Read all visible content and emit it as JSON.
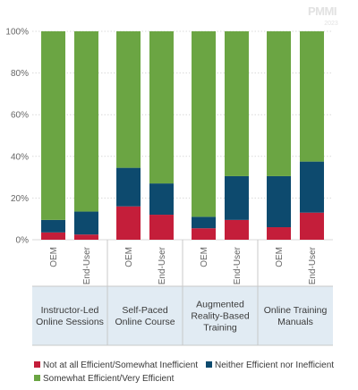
{
  "logo": {
    "text": "PMMI",
    "sub": "2023"
  },
  "chart_data": {
    "type": "bar",
    "stacked": true,
    "ylim": [
      0,
      100
    ],
    "yticks": [
      "0%",
      "20%",
      "40%",
      "60%",
      "80%",
      "100%"
    ],
    "groups": [
      {
        "label": [
          "Instructor-Led",
          "Online Sessions"
        ],
        "bars": [
          "OEM",
          "End-User"
        ]
      },
      {
        "label": [
          "Self-Paced",
          "Online Course"
        ],
        "bars": [
          "OEM",
          "End-User"
        ]
      },
      {
        "label": [
          "Augmented",
          "Reality-Based",
          "Training"
        ],
        "bars": [
          "OEM",
          "End-User"
        ]
      },
      {
        "label": [
          "Online Training",
          "Manuals"
        ],
        "bars": [
          "OEM",
          "End-User"
        ]
      }
    ],
    "series": [
      {
        "name": "Not at all Efficient/Somewhat Inefficient",
        "color": "#c41e3a",
        "values": [
          3.5,
          2.5,
          16,
          12,
          5.5,
          9.5,
          6,
          13
        ]
      },
      {
        "name": "Neither Efficient nor Inefficient",
        "color": "#0d4a6e",
        "values": [
          6,
          11,
          18.5,
          15,
          5.5,
          21,
          24.5,
          24.5
        ]
      },
      {
        "name": "Somewhat Efficient/Very Efficient",
        "color": "#6ba543",
        "values": [
          90.5,
          86.5,
          65.5,
          73,
          89,
          69.5,
          69.5,
          62.5
        ]
      }
    ]
  }
}
